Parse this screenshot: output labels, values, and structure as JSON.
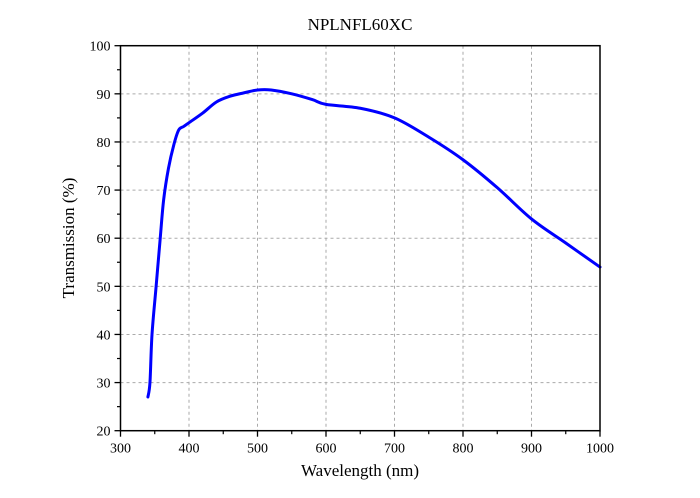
{
  "chart_data": {
    "type": "line",
    "title": "NPLNFL60XC",
    "xlabel": "Wavelength (nm)",
    "ylabel": "Transmission (%)",
    "xlim": [
      300,
      1000
    ],
    "ylim": [
      20,
      100
    ],
    "xticks": [
      300,
      400,
      500,
      600,
      700,
      800,
      900,
      1000
    ],
    "yticks": [
      20,
      30,
      40,
      50,
      60,
      70,
      80,
      90,
      100
    ],
    "grid": true,
    "line_color": "#0000ff",
    "series": [
      {
        "name": "Transmission",
        "x": [
          340,
          343,
          346,
          352,
          358,
          363,
          370,
          378,
          385,
          392,
          400,
          420,
          440,
          460,
          480,
          500,
          520,
          550,
          580,
          600,
          650,
          700,
          750,
          800,
          850,
          900,
          950,
          1000
        ],
        "y": [
          27,
          30,
          40,
          50,
          60,
          68,
          74.5,
          79.5,
          82.5,
          83.2,
          84,
          86,
          88.3,
          89.5,
          90.2,
          90.8,
          90.8,
          90,
          88.8,
          87.8,
          87,
          85,
          81,
          76.3,
          70.5,
          64,
          59,
          54
        ]
      }
    ]
  }
}
